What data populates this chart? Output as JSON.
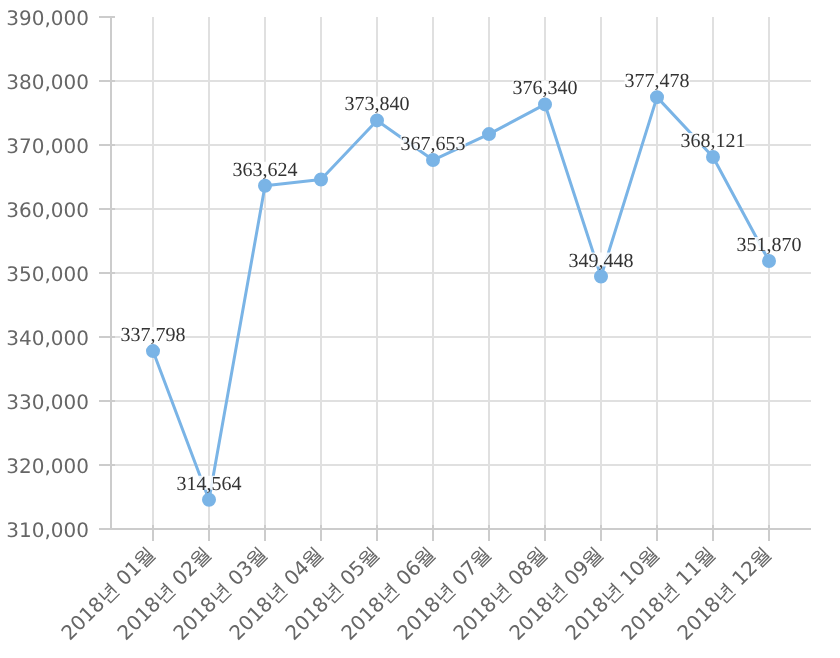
{
  "chart_data": {
    "type": "line",
    "categories": [
      "2018년 01월",
      "2018년 02월",
      "2018년 03월",
      "2018년 04월",
      "2018년 05월",
      "2018년 06월",
      "2018년 07월",
      "2018년 08월",
      "2018년 09월",
      "2018년 10월",
      "2018년 11월",
      "2018년 12월"
    ],
    "series": [
      {
        "color": "#7ab4e6",
        "values": [
          337798,
          314564,
          363624,
          364600,
          373840,
          367653,
          371700,
          376340,
          349448,
          377478,
          368121,
          351870
        ],
        "value_labels": [
          "337,798",
          "314,564",
          "363,624",
          null,
          "373,840",
          "367,653",
          null,
          "376,340",
          "349,448",
          "377,478",
          "368,121",
          "351,870"
        ]
      }
    ],
    "ylim": [
      310000,
      390000
    ],
    "yticks": [
      {
        "value": 310000,
        "label": "310,000"
      },
      {
        "value": 320000,
        "label": "320,000"
      },
      {
        "value": 330000,
        "label": "330,000"
      },
      {
        "value": 340000,
        "label": "340,000"
      },
      {
        "value": 350000,
        "label": "350,000"
      },
      {
        "value": 360000,
        "label": "360,000"
      },
      {
        "value": 370000,
        "label": "370,000"
      },
      {
        "value": 380000,
        "label": "380,000"
      },
      {
        "value": 390000,
        "label": "390,000"
      }
    ],
    "grid": true,
    "marker": "circle",
    "line_style": "solid"
  }
}
